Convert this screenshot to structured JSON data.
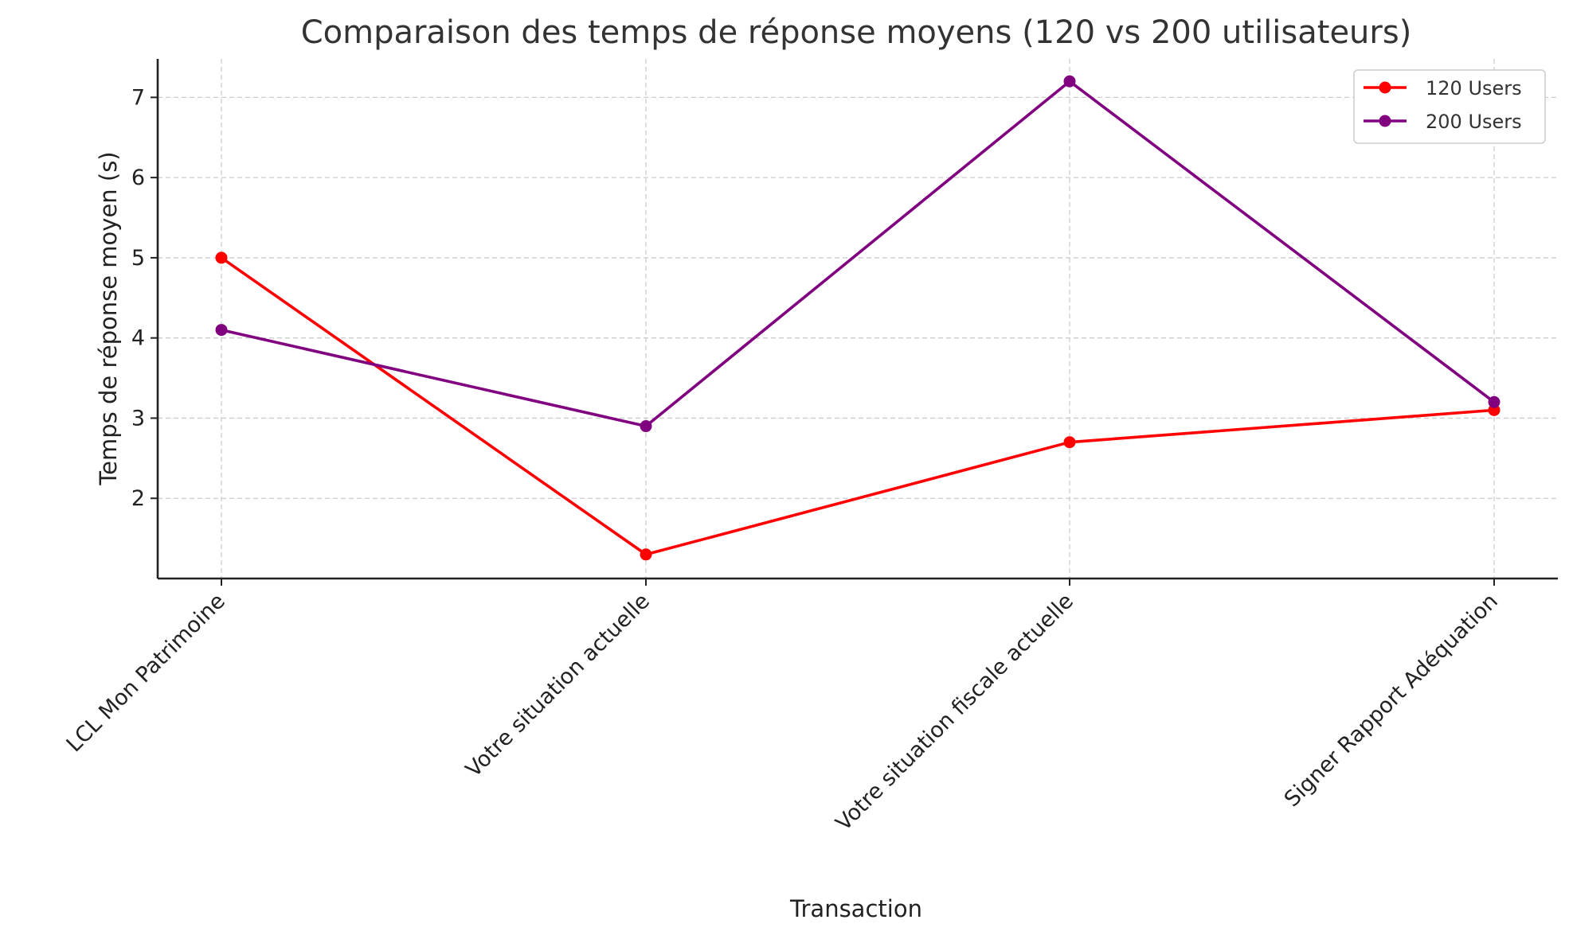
{
  "chart_data": {
    "type": "line",
    "title": "Comparaison des temps de réponse moyens (120 vs 200 utilisateurs)",
    "xlabel": "Transaction",
    "ylabel": "Temps de réponse moyen (s)",
    "categories": [
      "LCL Mon Patrimoine",
      "Votre situation actuelle",
      "Votre situation fiscale actuelle",
      "Signer Rapport Adéquation"
    ],
    "ylim": [
      1.0,
      7.48
    ],
    "yticks": [
      2,
      3,
      4,
      5,
      6,
      7
    ],
    "grid": true,
    "legend_position": "top-right",
    "series": [
      {
        "name": "120 Users",
        "color": "#ff0000",
        "values": [
          5.0,
          1.3,
          2.7,
          3.1
        ]
      },
      {
        "name": "200 Users",
        "color": "#800080",
        "values": [
          4.1,
          2.9,
          7.2,
          3.2
        ]
      }
    ]
  }
}
